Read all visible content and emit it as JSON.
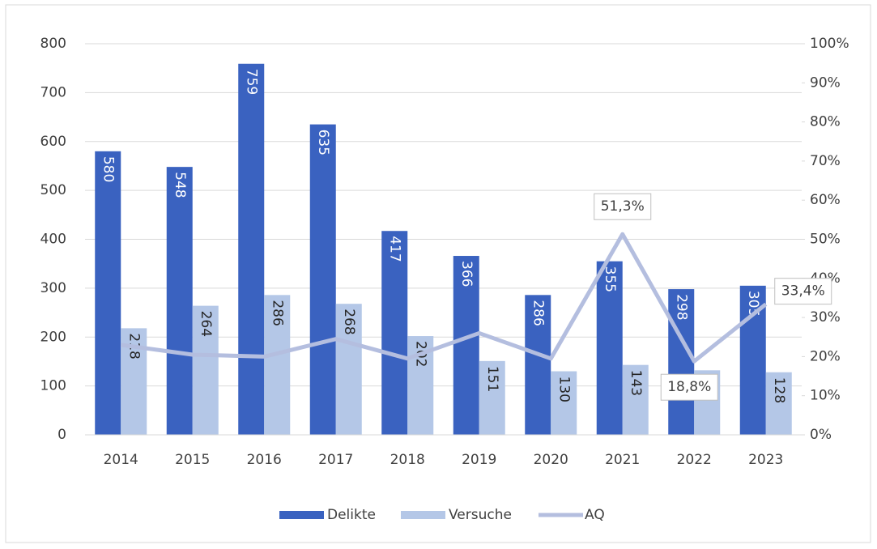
{
  "chart_data": {
    "type": "bar-line",
    "categories": [
      "2014",
      "2015",
      "2016",
      "2017",
      "2018",
      "2019",
      "2020",
      "2021",
      "2022",
      "2023"
    ],
    "series": [
      {
        "name": "Delikte",
        "color": "#3a62c0",
        "values": [
          580,
          548,
          759,
          635,
          417,
          366,
          286,
          355,
          298,
          305
        ]
      },
      {
        "name": "Versuche",
        "color": "#b4c7e7",
        "values": [
          218,
          264,
          286,
          268,
          202,
          151,
          130,
          143,
          132,
          128
        ]
      },
      {
        "name": "AQ",
        "color": "#b4bedf",
        "axis": "y2",
        "type": "line",
        "values": [
          23,
          20.5,
          20,
          24.5,
          19.5,
          26,
          19.5,
          51.3,
          18.8,
          33.4
        ],
        "value_labels": [
          null,
          null,
          null,
          null,
          null,
          null,
          null,
          "51,3%",
          "18,8%",
          "33,4%"
        ]
      }
    ],
    "ylim": [
      0,
      800
    ],
    "yticks": [
      0,
      100,
      200,
      300,
      400,
      500,
      600,
      700,
      800
    ],
    "y2lim": [
      0,
      100
    ],
    "y2ticks": [
      {
        "value": 0,
        "label": "0%"
      },
      {
        "value": 10,
        "label": "10%"
      },
      {
        "value": 20,
        "label": "20%"
      },
      {
        "value": 30,
        "label": "30%"
      },
      {
        "value": 40,
        "label": "40%"
      },
      {
        "value": 50,
        "label": "50%"
      },
      {
        "value": 60,
        "label": "60%"
      },
      {
        "value": 70,
        "label": "70%"
      },
      {
        "value": 80,
        "label": "80%"
      },
      {
        "value": 90,
        "label": "90%"
      },
      {
        "value": 100,
        "label": "100%"
      }
    ],
    "grid": true,
    "legend": "bottom"
  }
}
